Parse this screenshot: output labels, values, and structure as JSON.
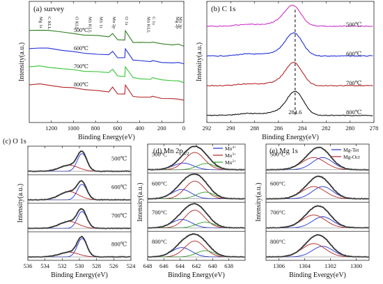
{
  "chart_data": [
    {
      "id": "a",
      "type": "line",
      "title": "(a) survey",
      "xlabel": "Binding Energy(eV)",
      "ylabel": "Intensity(a.u.)",
      "xlim": [
        1400,
        0
      ],
      "xticks": [
        1200,
        1000,
        800,
        600,
        400,
        200,
        0
      ],
      "peak_labels": [
        "Mg 1s",
        "C KLL",
        "O KLL",
        "Mn KLL",
        "Mn 1s",
        "Mn 2p",
        "O 1s",
        "Mn KLL",
        "C 1s",
        "Mg 2p",
        "Mn 3p"
      ],
      "series": [
        {
          "name": "500℃",
          "color": "#2e7d1e",
          "x": [
            1400,
            1304,
            1230,
            1100,
            1000,
            900,
            780,
            680,
            645,
            600,
            535,
            530,
            460,
            400,
            300,
            285,
            200,
            100,
            50,
            0
          ],
          "y": [
            0.95,
            0.98,
            0.93,
            0.83,
            0.76,
            0.72,
            0.66,
            0.6,
            0.8,
            0.45,
            0.45,
            0.95,
            0.35,
            0.33,
            0.3,
            0.34,
            0.25,
            0.2,
            0.22,
            0.15
          ]
        },
        {
          "name": "600℃",
          "color": "#1f2fd6",
          "x": [
            1400,
            1304,
            1230,
            1100,
            1000,
            900,
            780,
            680,
            645,
            600,
            535,
            530,
            460,
            400,
            300,
            285,
            200,
            100,
            50,
            0
          ],
          "y": [
            0.95,
            0.98,
            0.93,
            0.83,
            0.76,
            0.72,
            0.66,
            0.6,
            0.8,
            0.45,
            0.45,
            0.95,
            0.35,
            0.33,
            0.3,
            0.34,
            0.25,
            0.2,
            0.22,
            0.15
          ]
        },
        {
          "name": "700℃",
          "color": "#32c432",
          "x": [
            1400,
            1304,
            1230,
            1100,
            1000,
            900,
            780,
            680,
            645,
            600,
            535,
            530,
            460,
            400,
            300,
            285,
            200,
            100,
            50,
            0
          ],
          "y": [
            0.95,
            0.98,
            0.93,
            0.83,
            0.76,
            0.72,
            0.66,
            0.6,
            0.8,
            0.45,
            0.45,
            0.95,
            0.35,
            0.33,
            0.3,
            0.34,
            0.25,
            0.2,
            0.22,
            0.15
          ]
        },
        {
          "name": "800℃",
          "color": "#b22222",
          "x": [
            1400,
            1304,
            1230,
            1100,
            1000,
            900,
            780,
            680,
            645,
            600,
            535,
            530,
            460,
            400,
            300,
            285,
            200,
            100,
            50,
            0
          ],
          "y": [
            0.95,
            0.98,
            0.93,
            0.83,
            0.76,
            0.72,
            0.66,
            0.6,
            0.8,
            0.45,
            0.45,
            0.95,
            0.35,
            0.33,
            0.3,
            0.34,
            0.25,
            0.2,
            0.22,
            0.15
          ]
        }
      ]
    },
    {
      "id": "b",
      "type": "line",
      "title": "(b) C 1s",
      "xlabel": "Binding Energy(eV)",
      "ylabel": "Intensity(a.u.)",
      "xlim": [
        292,
        278
      ],
      "xticks": [
        292,
        290,
        288,
        286,
        284,
        282,
        280,
        278
      ],
      "reference_line": {
        "x": 284.6,
        "label": "284.6",
        "style": "dashed"
      },
      "series": [
        {
          "name": "500℃",
          "color": "#cc33cc",
          "peak": 284.8,
          "height": 0.8,
          "baseline": 0.12,
          "shoulder": 288.5
        },
        {
          "name": "600℃",
          "color": "#1f2fd6",
          "peak": 284.7,
          "height": 0.9,
          "baseline": 0.1,
          "shoulder": 288.5
        },
        {
          "name": "700℃",
          "color": "#b22222",
          "peak": 284.7,
          "height": 0.9,
          "baseline": 0.08,
          "shoulder": 288.5
        },
        {
          "name": "800℃",
          "color": "#111111",
          "peak": 284.6,
          "height": 0.95,
          "baseline": 0.06,
          "shoulder": 288.5
        }
      ]
    },
    {
      "id": "c",
      "type": "line",
      "title": "(c) O 1s",
      "xlabel": "Binding Energy(eV)",
      "ylabel": "Intensity(a.u.)",
      "xlim": [
        536,
        524
      ],
      "xticks": [
        536,
        534,
        532,
        530,
        528,
        526,
        524
      ],
      "panels": [
        {
          "label": "500℃",
          "components": [
            {
              "center": 529.7,
              "height": 0.82,
              "width": 0.55,
              "color": "#1f2fd6"
            },
            {
              "center": 531.2,
              "height": 0.28,
              "width": 1.1,
              "color": "#b22222"
            }
          ]
        },
        {
          "label": "600℃",
          "components": [
            {
              "center": 529.7,
              "height": 0.72,
              "width": 0.55,
              "color": "#1f2fd6"
            },
            {
              "center": 531.2,
              "height": 0.38,
              "width": 1.1,
              "color": "#b22222"
            }
          ]
        },
        {
          "label": "700℃",
          "components": [
            {
              "center": 529.7,
              "height": 0.78,
              "width": 0.55,
              "color": "#1f2fd6"
            },
            {
              "center": 531.2,
              "height": 0.32,
              "width": 1.1,
              "color": "#b22222"
            }
          ]
        },
        {
          "label": "800℃",
          "components": [
            {
              "center": 529.7,
              "height": 0.85,
              "width": 0.55,
              "color": "#1f2fd6"
            },
            {
              "center": 531.2,
              "height": 0.22,
              "width": 1.1,
              "color": "#b22222"
            }
          ]
        }
      ]
    },
    {
      "id": "d",
      "type": "line",
      "title": "(d) Mn 2p",
      "title_sub": "3/2",
      "xlabel": "Binding Energy(eV)",
      "ylabel": "Intensity(a.u.)",
      "xlim": [
        648,
        636
      ],
      "xticks": [
        648,
        646,
        644,
        642,
        640,
        638
      ],
      "legend": [
        {
          "name": "Mn",
          "sup": "4+",
          "color": "#1f2fd6"
        },
        {
          "name": "Mn",
          "sup": "3+",
          "color": "#b22222"
        },
        {
          "name": "Mn",
          "sup": "2+",
          "color": "#2e9e2e"
        }
      ],
      "panels": [
        {
          "label": "500°C",
          "components": [
            {
              "center": 643.6,
              "height": 0.3,
              "width": 1.2,
              "color": "#1f2fd6"
            },
            {
              "center": 642.2,
              "height": 0.78,
              "width": 1.2,
              "color": "#b22222"
            },
            {
              "center": 640.8,
              "height": 0.28,
              "width": 1.1,
              "color": "#2e9e2e"
            }
          ]
        },
        {
          "label": "600°C",
          "components": [
            {
              "center": 643.8,
              "height": 0.42,
              "width": 1.2,
              "color": "#1f2fd6"
            },
            {
              "center": 642.2,
              "height": 0.8,
              "width": 1.2,
              "color": "#b22222"
            },
            {
              "center": 640.9,
              "height": 0.3,
              "width": 1.1,
              "color": "#2e9e2e"
            }
          ]
        },
        {
          "label": "700°C",
          "components": [
            {
              "center": 643.8,
              "height": 0.38,
              "width": 1.2,
              "color": "#1f2fd6"
            },
            {
              "center": 642.2,
              "height": 0.8,
              "width": 1.2,
              "color": "#b22222"
            },
            {
              "center": 640.9,
              "height": 0.26,
              "width": 1.1,
              "color": "#2e9e2e"
            }
          ]
        },
        {
          "label": "800°C",
          "components": [
            {
              "center": 643.8,
              "height": 0.42,
              "width": 1.2,
              "color": "#1f2fd6"
            },
            {
              "center": 642.2,
              "height": 0.72,
              "width": 1.2,
              "color": "#b22222"
            },
            {
              "center": 640.9,
              "height": 0.28,
              "width": 1.1,
              "color": "#2e9e2e"
            }
          ]
        }
      ]
    },
    {
      "id": "e",
      "type": "line",
      "title": "(e) Mg 1s",
      "xlabel": "Binding Evergy(eV)",
      "ylabel": "Intensity(a.u.)",
      "xlim": [
        1307,
        1299
      ],
      "xticks": [
        1306,
        1304,
        1302,
        1300
      ],
      "legend": [
        {
          "name": "Mg-Tet",
          "color": "#1f2fd6"
        },
        {
          "name": "Mg-Oct",
          "color": "#b22222"
        }
      ],
      "panels": [
        {
          "label": "500°C",
          "components": [
            {
              "center": 1302.6,
              "height": 0.55,
              "width": 0.8,
              "color": "#1f2fd6"
            },
            {
              "center": 1303.3,
              "height": 0.55,
              "width": 0.9,
              "color": "#b22222"
            }
          ]
        },
        {
          "label": "600°C",
          "components": [
            {
              "center": 1302.6,
              "height": 0.55,
              "width": 0.8,
              "color": "#1f2fd6"
            },
            {
              "center": 1303.3,
              "height": 0.55,
              "width": 0.9,
              "color": "#b22222"
            }
          ]
        },
        {
          "label": "700°C",
          "components": [
            {
              "center": 1302.6,
              "height": 0.5,
              "width": 0.8,
              "color": "#1f2fd6"
            },
            {
              "center": 1303.3,
              "height": 0.58,
              "width": 0.9,
              "color": "#b22222"
            }
          ]
        },
        {
          "label": "800°C",
          "components": [
            {
              "center": 1302.6,
              "height": 0.48,
              "width": 0.8,
              "color": "#1f2fd6"
            },
            {
              "center": 1303.3,
              "height": 0.6,
              "width": 0.9,
              "color": "#b22222"
            }
          ]
        }
      ]
    }
  ]
}
